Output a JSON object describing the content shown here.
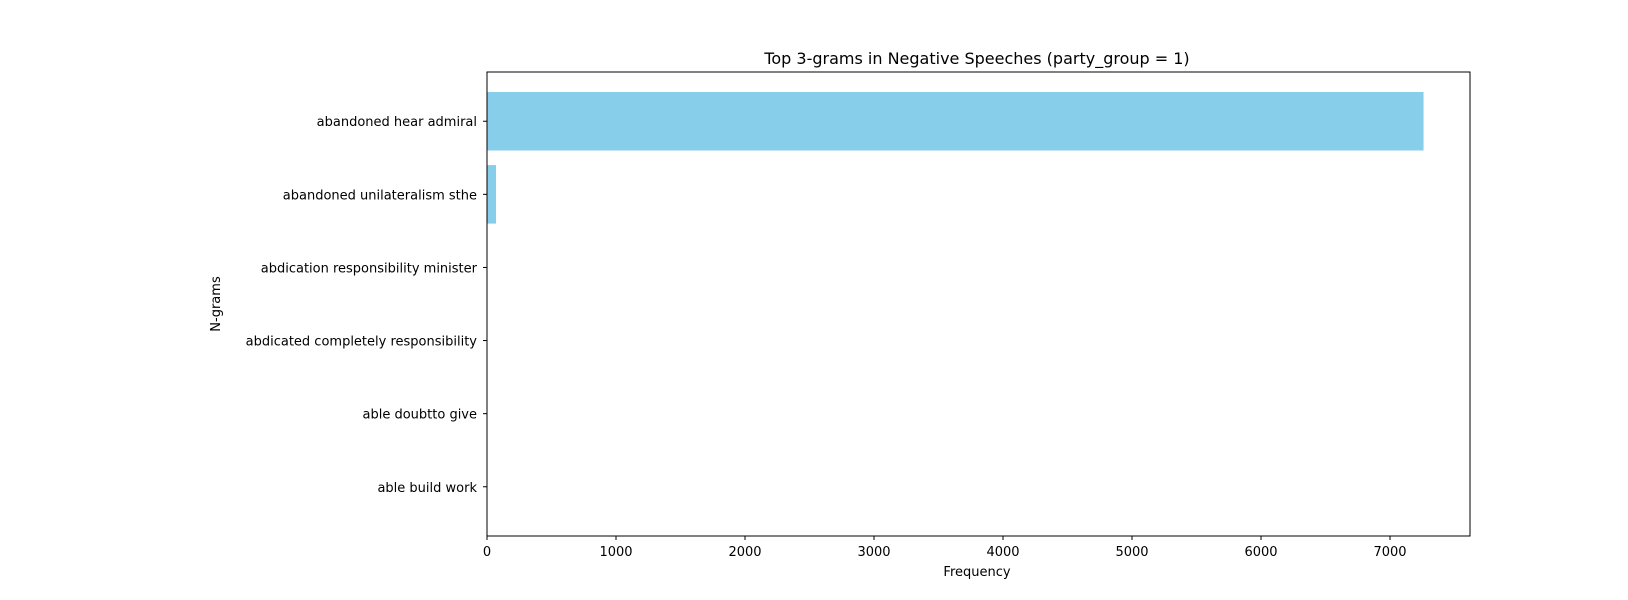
{
  "chart_data": {
    "type": "bar",
    "orientation": "horizontal",
    "title": "Top 3-grams in Negative Speeches (party_group = 1)",
    "xlabel": "Frequency",
    "ylabel": "N-grams",
    "categories": [
      "abandoned hear admiral",
      "abandoned unilateralism sthe",
      "abdication responsibility minister",
      "abdicated completely responsibility",
      "able doubtto give",
      "able build work"
    ],
    "values": [
      7260,
      70,
      3,
      3,
      2,
      2
    ],
    "xlim": [
      0,
      7620
    ],
    "xticks": [
      0,
      1000,
      2000,
      3000,
      4000,
      5000,
      6000,
      7000
    ],
    "grid": false,
    "bar_color": "#87CEEB"
  }
}
